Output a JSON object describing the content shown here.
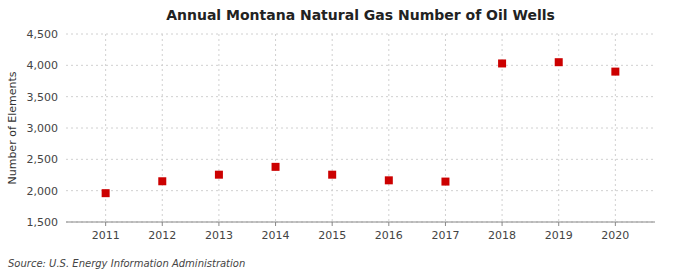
{
  "chart_data": {
    "type": "scatter",
    "title": "Annual Montana Natural Gas Number of Oil Wells",
    "ylabel": "Number of Elements",
    "annotations": [
      "Source: U.S. Energy Information Administration"
    ],
    "x": [
      2011,
      2012,
      2013,
      2014,
      2015,
      2016,
      2017,
      2018,
      2019,
      2020
    ],
    "values": [
      1960,
      2150,
      2255,
      2380,
      2255,
      2165,
      2145,
      4030,
      4050,
      3900
    ],
    "color": "#cc0000",
    "marker": "square",
    "grid": true,
    "xlim": [
      2010.3,
      2020.7
    ],
    "xticks": [
      2011,
      2012,
      2013,
      2014,
      2015,
      2016,
      2017,
      2018,
      2019,
      2020
    ],
    "ylim": [
      1500,
      4500
    ],
    "yticks": [
      {
        "value": 1500,
        "label": "1,500"
      },
      {
        "value": 2000,
        "label": "2,000"
      },
      {
        "value": 2500,
        "label": "2,500"
      },
      {
        "value": 3000,
        "label": "3,000"
      },
      {
        "value": 3500,
        "label": "3,500"
      },
      {
        "value": 4000,
        "label": "4,000"
      },
      {
        "value": 4500,
        "label": "4,500"
      }
    ]
  }
}
